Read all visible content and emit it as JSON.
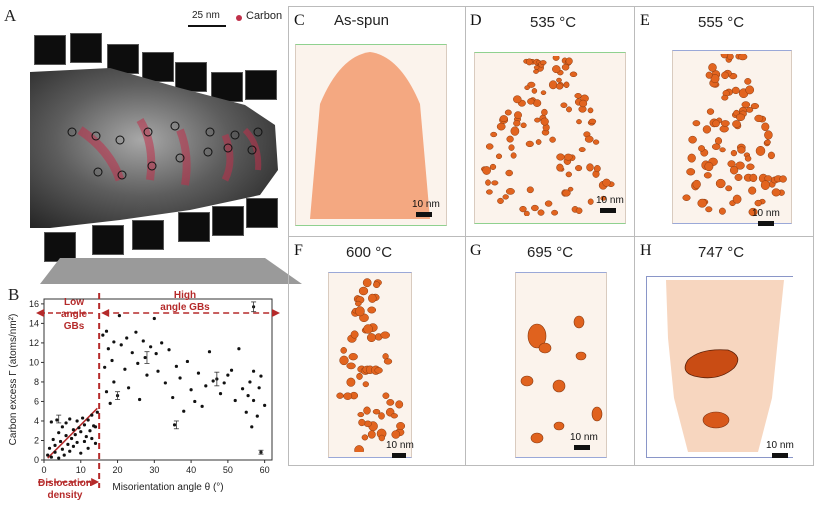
{
  "panelA": {
    "label": "A",
    "scalebar": "25 nm",
    "legend": "Carbon"
  },
  "panelB": {
    "label": "B",
    "low_angle": "Low angle GBs",
    "high_angle": "High angle GBs",
    "dislocation": "Dislocation density"
  },
  "panels": [
    {
      "id": "C",
      "title": "As-spun",
      "scalebar": "10 nm"
    },
    {
      "id": "D",
      "title": "535 °C",
      "scalebar": "10 nm"
    },
    {
      "id": "E",
      "title": "555 °C",
      "scalebar": "10 nm"
    },
    {
      "id": "F",
      "title": "600 °C",
      "scalebar": "10 nm"
    },
    {
      "id": "G",
      "title": "695 °C",
      "scalebar": "10 nm"
    },
    {
      "id": "H",
      "title": "747 °C",
      "scalebar": "10 nm"
    }
  ],
  "chart_data": {
    "type": "scatter",
    "xlabel": "Misorientation angle θ (°)",
    "ylabel": "Carbon excess Γ (atoms/nm²)",
    "xlim": [
      0,
      62
    ],
    "ylim": [
      0,
      16.5
    ],
    "xticks": [
      0,
      10,
      20,
      30,
      40,
      50,
      60
    ],
    "yticks": [
      0,
      2,
      4,
      6,
      8,
      10,
      12,
      14,
      16
    ],
    "threshold_x": 15,
    "colors": {
      "accent": "#b52a2a",
      "points": "#111111"
    },
    "points": [
      [
        1,
        0.5
      ],
      [
        1.5,
        1.2
      ],
      [
        2,
        3.9
      ],
      [
        2,
        0.3
      ],
      [
        2.5,
        2.1
      ],
      [
        3,
        1.5
      ],
      [
        3,
        0.8
      ],
      [
        3.5,
        4.1
      ],
      [
        4,
        2.8
      ],
      [
        4,
        0.2
      ],
      [
        4.5,
        1.9
      ],
      [
        5,
        3.4
      ],
      [
        5,
        1.1
      ],
      [
        5.5,
        0.5
      ],
      [
        6,
        2.5
      ],
      [
        6,
        3.8
      ],
      [
        6.5,
        1.6
      ],
      [
        7,
        4.2
      ],
      [
        7,
        0.9
      ],
      [
        7.5,
        2.2
      ],
      [
        8,
        3.1
      ],
      [
        8,
        1.4
      ],
      [
        8.5,
        2.6
      ],
      [
        9,
        4.0
      ],
      [
        9,
        1.8
      ],
      [
        9.5,
        3.3
      ],
      [
        10,
        0.7
      ],
      [
        10,
        2.9
      ],
      [
        10.5,
        4.3
      ],
      [
        11,
        1.9
      ],
      [
        11,
        3.6
      ],
      [
        11.5,
        2.4
      ],
      [
        12,
        4.1
      ],
      [
        12,
        1.2
      ],
      [
        12.5,
        3.0
      ],
      [
        13,
        2.2
      ],
      [
        13,
        4.6
      ],
      [
        13.5,
        3.5
      ],
      [
        14,
        1.7
      ],
      [
        14.5,
        4.9
      ],
      [
        16,
        12.8
      ],
      [
        16.5,
        9.5
      ],
      [
        17,
        13.2
      ],
      [
        17,
        7.0
      ],
      [
        17.5,
        11.4
      ],
      [
        18,
        5.8
      ],
      [
        18.5,
        10.2
      ],
      [
        19,
        12.1
      ],
      [
        19,
        8.0
      ],
      [
        20,
        6.6
      ],
      [
        20.5,
        14.8
      ],
      [
        21,
        11.8
      ],
      [
        22,
        9.3
      ],
      [
        22.5,
        12.5
      ],
      [
        23,
        7.4
      ],
      [
        24,
        11.0
      ],
      [
        25,
        13.1
      ],
      [
        25.5,
        9.9
      ],
      [
        26,
        6.2
      ],
      [
        27,
        12.2
      ],
      [
        27.5,
        10.5
      ],
      [
        28,
        8.7
      ],
      [
        29,
        11.6
      ],
      [
        30,
        14.5
      ],
      [
        30.5,
        10.9
      ],
      [
        31,
        9.1
      ],
      [
        32,
        12.0
      ],
      [
        33,
        7.9
      ],
      [
        34,
        11.3
      ],
      [
        35,
        6.4
      ],
      [
        35.5,
        3.6
      ],
      [
        36,
        9.6
      ],
      [
        37,
        8.4
      ],
      [
        38,
        5.0
      ],
      [
        39,
        10.1
      ],
      [
        40,
        7.2
      ],
      [
        41,
        6.0
      ],
      [
        42,
        8.9
      ],
      [
        43,
        5.5
      ],
      [
        44,
        7.6
      ],
      [
        45,
        11.1
      ],
      [
        46,
        8.1
      ],
      [
        47,
        8.3
      ],
      [
        48,
        6.8
      ],
      [
        49,
        7.9
      ],
      [
        50,
        8.7
      ],
      [
        51,
        9.2
      ],
      [
        52,
        6.1
      ],
      [
        53,
        11.4
      ],
      [
        54,
        7.3
      ],
      [
        55,
        4.9
      ],
      [
        55.5,
        6.6
      ],
      [
        56,
        8.0
      ],
      [
        56.5,
        3.4
      ],
      [
        57,
        9.1
      ],
      [
        57,
        6.1
      ],
      [
        58,
        4.5
      ],
      [
        58.5,
        7.4
      ],
      [
        59,
        8.6
      ],
      [
        59,
        0.8
      ],
      [
        60,
        5.6
      ],
      [
        14,
        3.4
      ],
      [
        57,
        15.7
      ]
    ],
    "error_bars": [
      [
        4,
        4.2,
        0.4
      ],
      [
        20,
        6.6,
        0.4
      ],
      [
        28,
        10.5,
        0.6
      ],
      [
        36,
        3.6,
        0.4
      ],
      [
        47,
        8.3,
        0.7
      ],
      [
        57,
        15.7,
        0.5
      ],
      [
        59,
        0.8,
        0.2
      ]
    ],
    "trend_line": [
      [
        1,
        0.2
      ],
      [
        14.5,
        5.3
      ]
    ]
  }
}
